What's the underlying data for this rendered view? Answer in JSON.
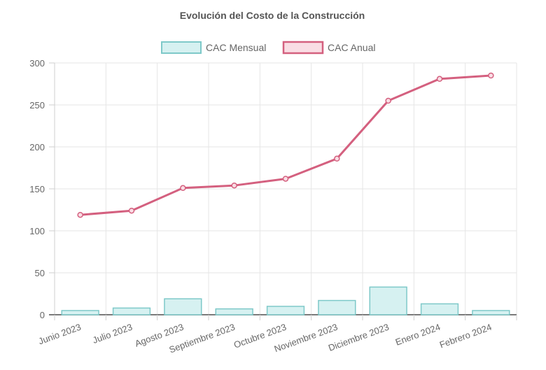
{
  "chart_data": {
    "type": "bar",
    "title": "Evolución del Costo de la Construcción",
    "categories": [
      "Junio 2023",
      "Julio 2023",
      "Agosto 2023",
      "Septiembre 2023",
      "Octubre 2023",
      "Noviembre 2023",
      "Diciembre 2023",
      "Enero 2024",
      "Febrero 2024"
    ],
    "series": [
      {
        "name": "CAC Mensual",
        "type": "bar",
        "values": [
          5,
          8,
          19,
          7,
          10,
          17,
          33,
          13,
          5
        ],
        "fill": "#d6f1f1",
        "stroke": "#7ec9c9"
      },
      {
        "name": "CAC Anual",
        "type": "line",
        "values": [
          119,
          124,
          151,
          154,
          162,
          186,
          255,
          281,
          285
        ],
        "fill": "#f9dde4",
        "stroke": "#d4607f"
      }
    ],
    "ylim": [
      0,
      300
    ],
    "yticks": [
      0,
      50,
      100,
      150,
      200,
      250,
      300
    ],
    "grid": true,
    "legend_position": "top"
  }
}
